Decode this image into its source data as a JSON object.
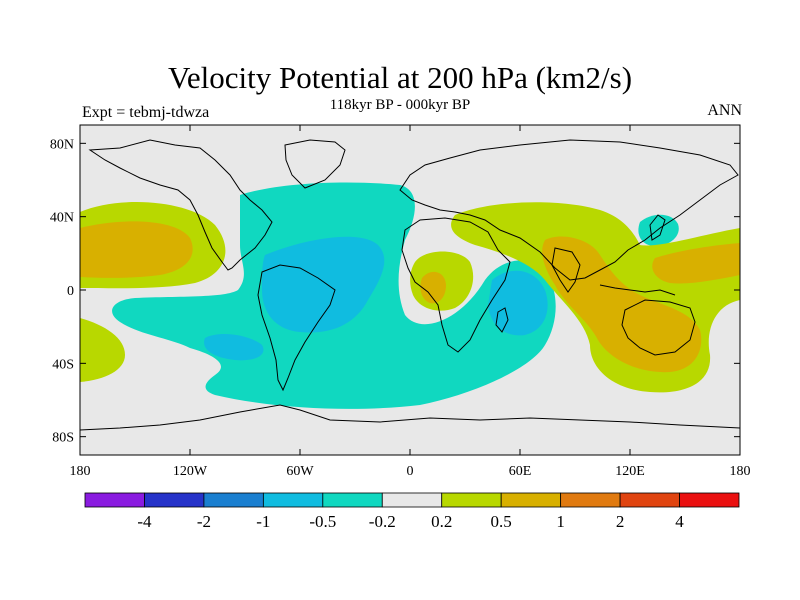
{
  "title": "Velocity Potential at 200 hPa (km2/s)",
  "subtitle": "118kyr BP - 000kyr BP",
  "experiment_label": "Expt = tebmj-tdwza",
  "season_label": "ANN",
  "colors": {
    "background": "#e8e8e8",
    "coast": "#000000",
    "c_m4": "#8a1be0",
    "c_m2": "#2633c9",
    "c_m1": "#1a7fd0",
    "c_m05": "#10bce0",
    "c_m02": "#10d8c0",
    "c_0": "#e8e8e8",
    "c_02": "#b8d800",
    "c_05": "#d8b000",
    "c_1": "#e07a10",
    "c_2": "#e04410",
    "c_4": "#ea1010"
  },
  "map": {
    "projection": "cylindrical equidistant",
    "lon_range": [
      -180,
      180
    ],
    "lat_range": [
      -90,
      90
    ],
    "x_ticks": [
      "180",
      "120W",
      "60W",
      "0",
      "60E",
      "120E",
      "180"
    ],
    "y_ticks": [
      "80N",
      "40N",
      "0",
      "40S",
      "80S"
    ],
    "x_tick_values": [
      -180,
      -120,
      -60,
      0,
      60,
      120,
      180
    ],
    "y_tick_values": [
      80,
      40,
      0,
      -40,
      -80
    ]
  },
  "colorbar": {
    "labels": [
      "-4",
      "-2",
      "-1",
      "-0.5",
      "-0.2",
      "0.2",
      "0.5",
      "1",
      "2",
      "4"
    ],
    "boxes": [
      "#8a1be0",
      "#2633c9",
      "#1a7fd0",
      "#10bce0",
      "#10d8c0",
      "#e8e8e8",
      "#b8d800",
      "#d8b000",
      "#e07a10",
      "#e04410",
      "#ea1010"
    ]
  }
}
